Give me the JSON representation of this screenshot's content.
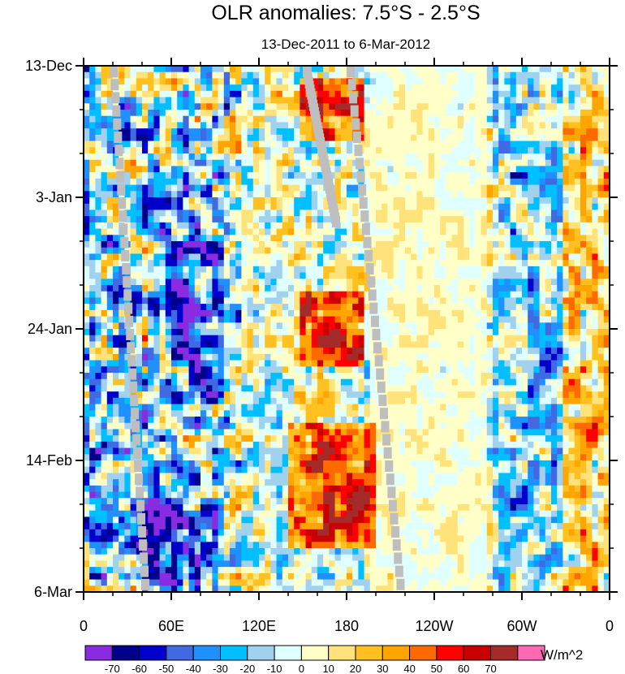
{
  "chart_data": {
    "type": "heatmap",
    "title": "OLR anomalies: 7.5°S - 2.5°S",
    "subtitle": "13-Dec-2011 to 6-Mar-2012",
    "x_axis": {
      "tick_labels": [
        "0",
        "60E",
        "120E",
        "180",
        "120W",
        "60W",
        "0"
      ],
      "tick_values_deg_east": [
        0,
        60,
        120,
        180,
        240,
        300,
        360
      ],
      "range": [
        0,
        360
      ]
    },
    "y_axis": {
      "tick_labels": [
        "13-Dec",
        "3-Jan",
        "24-Jan",
        "14-Feb",
        "6-Mar"
      ],
      "tick_values": [
        "2011-12-13",
        "2012-01-03",
        "2012-01-24",
        "2012-02-14",
        "2012-03-06"
      ],
      "range": [
        "2011-12-13",
        "2012-03-06"
      ],
      "direction": "time increases downward"
    },
    "colorbar": {
      "units": "W/m^2",
      "levels": [
        -70,
        -60,
        -50,
        -40,
        -30,
        -20,
        -10,
        0,
        10,
        20,
        30,
        40,
        50,
        60,
        70
      ],
      "colors": [
        "#8a2be2",
        "#00008b",
        "#0000cd",
        "#4169e1",
        "#1e90ff",
        "#00bfff",
        "#a0d2f0",
        "#e0ffff",
        "#ffffc8",
        "#ffe27a",
        "#ffc020",
        "#ffa500",
        "#ff6a00",
        "#ff0000",
        "#c80000",
        "#a52a2a",
        "#ff69b4"
      ],
      "missing_color": "#bebebe"
    },
    "regions": [
      {
        "lon": [
          0,
          100
        ],
        "time": [
          "2011-12-13",
          "2012-03-06"
        ],
        "anomaly": -20,
        "description": "mixed, mostly negative"
      },
      {
        "lon": [
          55,
          95
        ],
        "time": [
          "2012-01-10",
          "2012-02-05"
        ],
        "anomaly": -50
      },
      {
        "lon": [
          40,
          90
        ],
        "time": [
          "2012-02-20",
          "2012-03-06"
        ],
        "anomaly": -50
      },
      {
        "lon": [
          150,
          190
        ],
        "time": [
          "2011-12-15",
          "2011-12-25"
        ],
        "anomaly": 60
      },
      {
        "lon": [
          150,
          190
        ],
        "time": [
          "2012-01-18",
          "2012-01-30"
        ],
        "anomaly": 60
      },
      {
        "lon": [
          140,
          200
        ],
        "time": [
          "2012-02-08",
          "2012-02-28"
        ],
        "anomaly": 60
      },
      {
        "lon": [
          195,
          280
        ],
        "time": [
          "2011-12-13",
          "2012-03-06"
        ],
        "anomaly": 5
      },
      {
        "lon": [
          280,
          340
        ],
        "time": [
          "2011-12-13",
          "2012-03-06"
        ],
        "anomaly": -20
      },
      {
        "lon": [
          320,
          360
        ],
        "time": [
          "2011-12-13",
          "2012-03-06"
        ],
        "anomaly": 20
      }
    ]
  }
}
